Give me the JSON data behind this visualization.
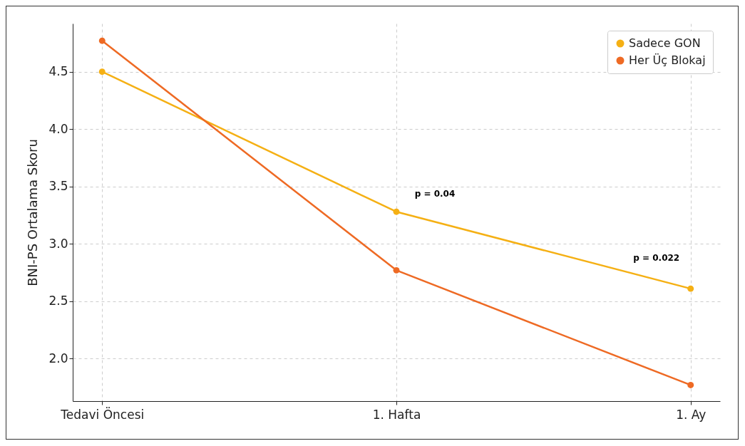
{
  "chart_data": {
    "type": "line",
    "ylabel": "BNI-PS Ortalama Skoru",
    "categories": [
      "Tedavi Öncesi",
      "1. Hafta",
      "1. Ay"
    ],
    "series": [
      {
        "name": "Sadece GON",
        "color": "#f5b014",
        "values": [
          4.5,
          3.28,
          2.61
        ]
      },
      {
        "name": "Her Üç Blokaj",
        "color": "#ee6a24",
        "values": [
          4.77,
          2.77,
          1.77
        ]
      }
    ],
    "ylim": [
      1.63,
      4.92
    ],
    "yticks": [
      {
        "value": 2,
        "label": "2.0"
      },
      2.5,
      {
        "value": 3,
        "label": "3.0"
      },
      3.5,
      {
        "value": 4,
        "label": "4.0"
      },
      4.5
    ],
    "grid": true,
    "legend": "top right",
    "marker": "circle",
    "line_style": "solid",
    "annotations": [
      "p = 0.04",
      "p = 0.022"
    ]
  }
}
